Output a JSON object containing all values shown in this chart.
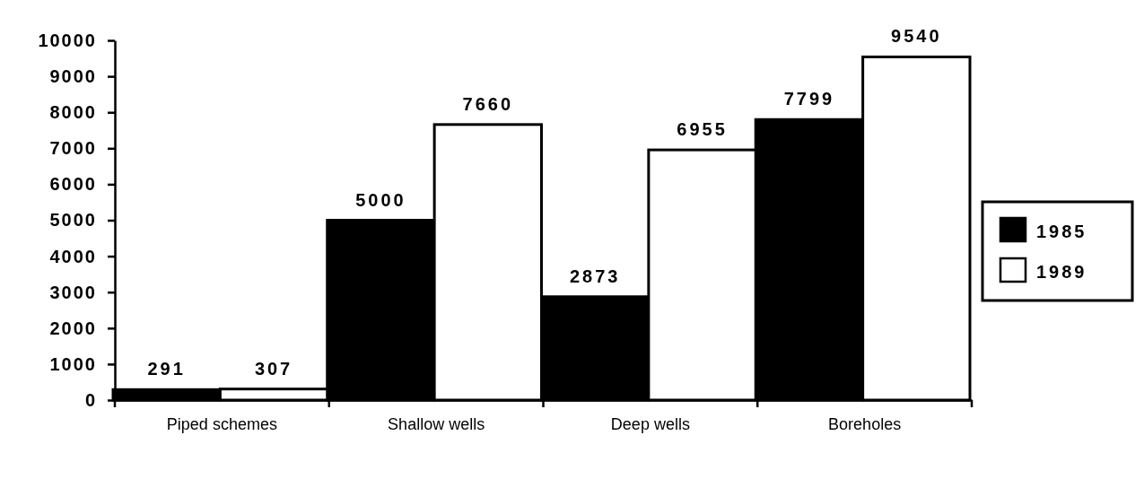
{
  "chart_data": {
    "type": "bar",
    "categories": [
      "Piped schemes",
      "Shallow  wells",
      "Deep wells",
      "Boreholes"
    ],
    "series": [
      {
        "name": "1985",
        "color": "#000000",
        "values": [
          291,
          5000,
          2873,
          7799
        ]
      },
      {
        "name": "1989",
        "color": "#ffffff",
        "values": [
          307,
          7660,
          6955,
          9540
        ]
      }
    ],
    "ylim": [
      0,
      10000
    ],
    "yticks": [
      0,
      1000,
      2000,
      3000,
      4000,
      5000,
      6000,
      7000,
      8000,
      9000,
      10000
    ],
    "data_labels": true,
    "legend": "right",
    "grid": false
  }
}
